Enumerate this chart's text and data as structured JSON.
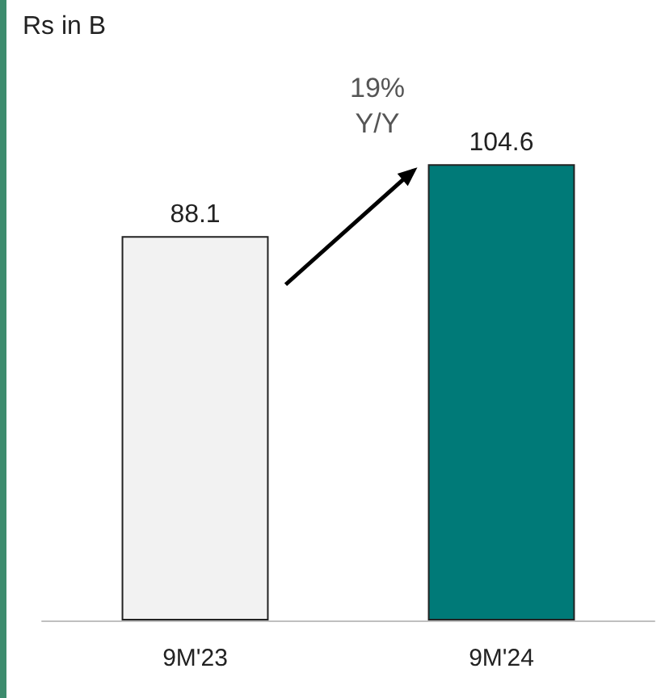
{
  "chart_data": {
    "type": "bar",
    "title": "Rs in B",
    "categories": [
      "9M'23",
      "9M'24"
    ],
    "values": [
      88.1,
      104.6
    ],
    "colors": [
      "#f2f2f2",
      "#007a78"
    ],
    "data_labels": true,
    "annotations": [
      "19% Y/Y"
    ]
  }
}
